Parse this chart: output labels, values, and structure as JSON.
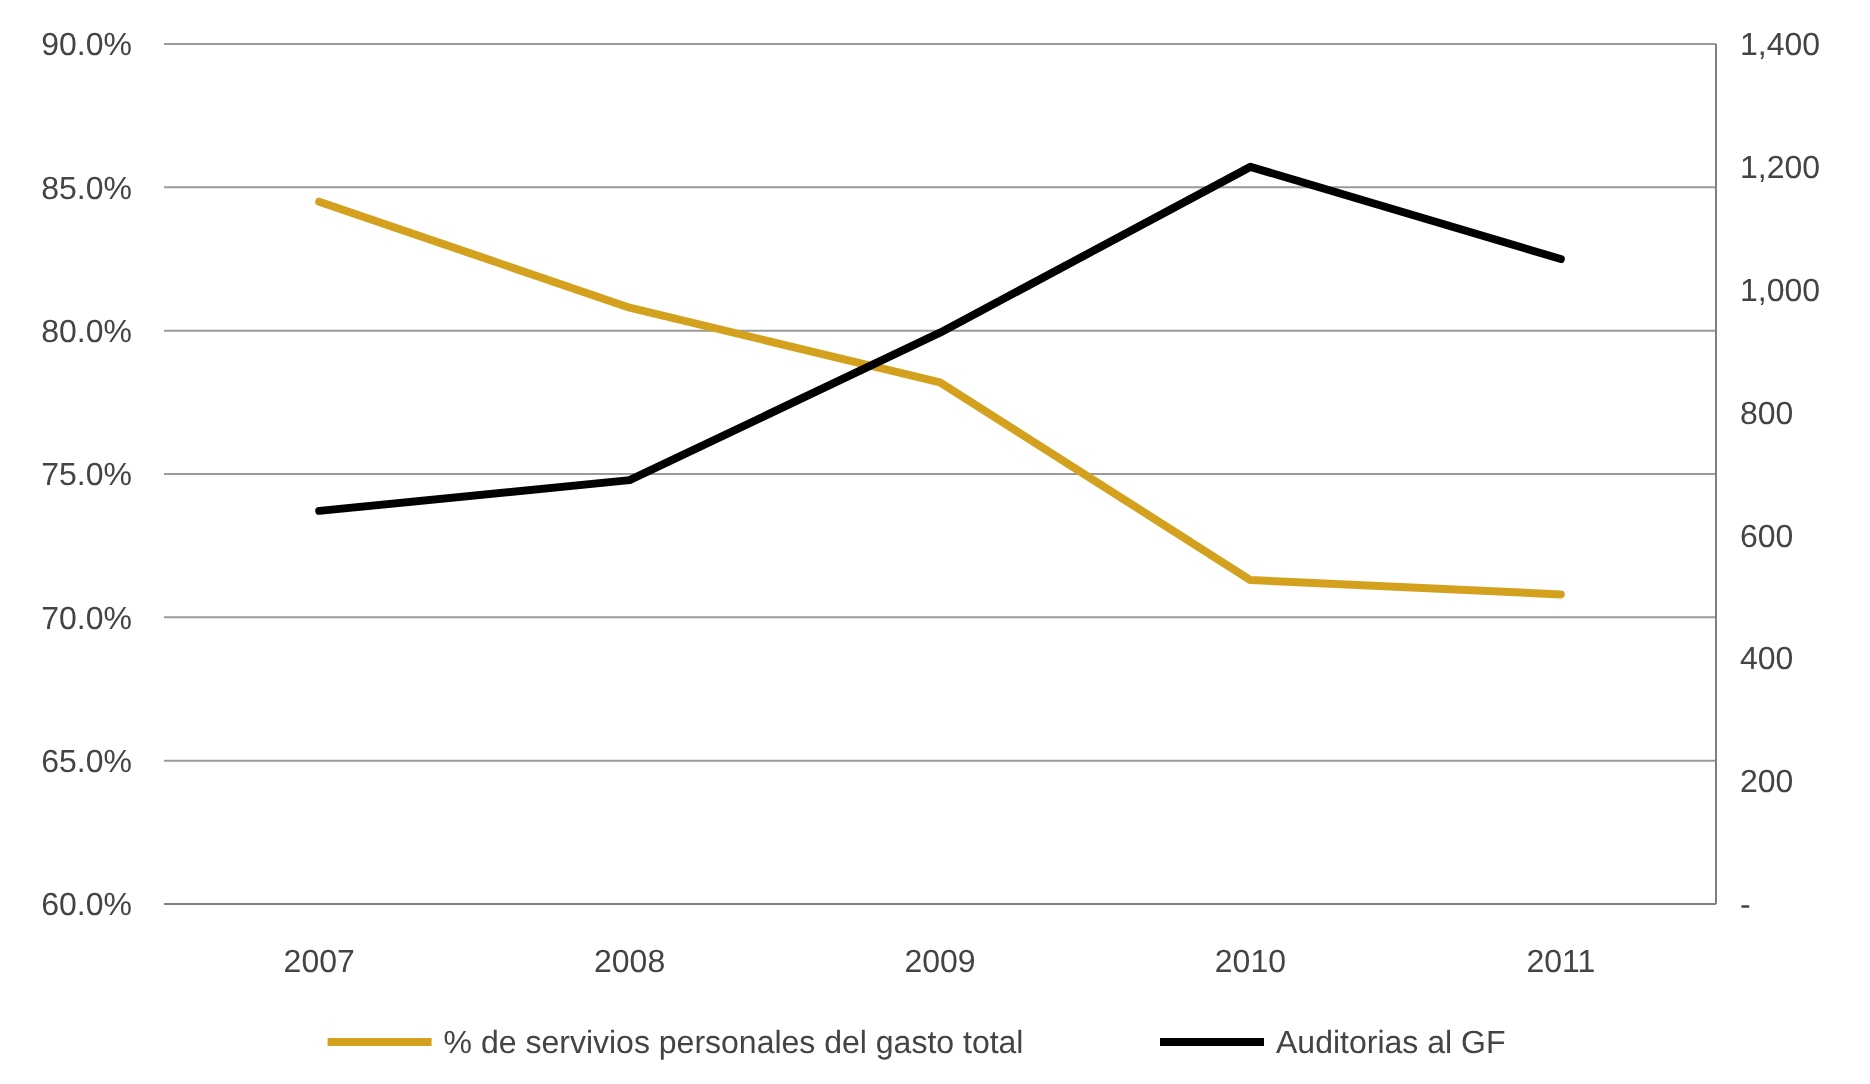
{
  "chart_data": {
    "type": "line",
    "categories": [
      "2007",
      "2008",
      "2009",
      "2010",
      "2011"
    ],
    "series": [
      {
        "name": "% de servivios personales del gasto total",
        "color": "#d4a11e",
        "values": [
          84.5,
          80.8,
          78.2,
          71.3,
          70.8
        ]
      },
      {
        "name": "Auditorias al GF",
        "color": "#000000",
        "axis": "y2",
        "values": [
          640,
          690,
          930,
          1200,
          1050
        ]
      }
    ],
    "ylim": [
      60,
      90
    ],
    "yticks": [
      {
        "value": 60,
        "label": "60.0%"
      },
      {
        "value": 65,
        "label": "65.0%"
      },
      {
        "value": 70,
        "label": "70.0%"
      },
      {
        "value": 75,
        "label": "75.0%"
      },
      {
        "value": 80,
        "label": "80.0%"
      },
      {
        "value": 85,
        "label": "85.0%"
      },
      {
        "value": 90,
        "label": "90.0%"
      }
    ],
    "y2lim": [
      0,
      1400
    ],
    "y2ticks": [
      {
        "value": 0,
        "label": "-"
      },
      {
        "value": 200,
        "label": "200"
      },
      {
        "value": 400,
        "label": "400"
      },
      {
        "value": 600,
        "label": "600"
      },
      {
        "value": 800,
        "label": "800"
      },
      {
        "value": 1000,
        "label": "1,000"
      },
      {
        "value": 1200,
        "label": "1,200"
      },
      {
        "value": 1400,
        "label": "1,400"
      }
    ],
    "grid": "y",
    "legend": "bottom",
    "marker": "none",
    "line_style": "solid"
  }
}
